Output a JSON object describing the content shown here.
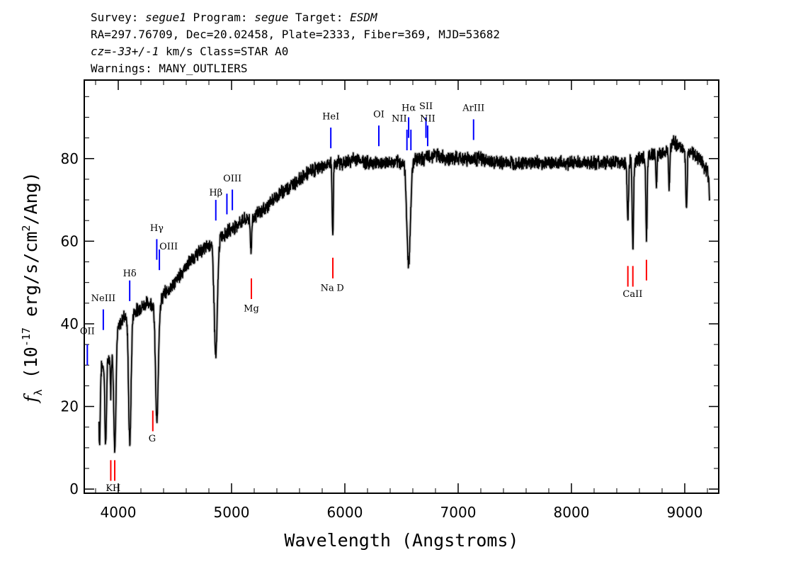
{
  "header": {
    "survey_label": "Survey: ",
    "survey": "segue1",
    "program_label": " Program: ",
    "program": "segue",
    "target_label": " Target: ",
    "target": "ESDM",
    "line2": "RA=297.76709, Dec=20.02458, Plate=2333, Fiber=369, MJD=53682",
    "cz_label": "cz",
    "cz_value": "=-33+/-1",
    "cz_rest": " km/s Class=STAR A0",
    "warnings": "Warnings: MANY_OUTLIERS"
  },
  "colors": {
    "emission": "#0000ff",
    "absorption": "#ff0000",
    "spectrum": "#000000",
    "error": "#c8c8c8"
  },
  "chart_data": {
    "type": "line",
    "xlabel": "Wavelength (Angstroms)",
    "ylabel_parts": {
      "f": "f",
      "lambda": "λ",
      "unit_a": " (10",
      "exp": "-17",
      "unit_b": " erg/s/cm",
      "exp2": "2",
      "unit_c": "/Ang)"
    },
    "xlim": [
      3700,
      9300
    ],
    "ylim": [
      -1,
      99
    ],
    "x_ticks": [
      4000,
      5000,
      6000,
      7000,
      8000,
      9000
    ],
    "x_tick_labels": [
      "4000",
      "5000",
      "6000",
      "7000",
      "8000",
      "9000"
    ],
    "y_ticks": [
      0,
      20,
      40,
      60,
      80
    ],
    "y_tick_labels": [
      "0",
      "20",
      "40",
      "60",
      "80"
    ],
    "continuum": [
      [
        3830,
        29
      ],
      [
        3870,
        30
      ],
      [
        3905,
        31
      ],
      [
        3950,
        33
      ],
      [
        3990,
        38
      ],
      [
        4050,
        42
      ],
      [
        4100,
        42
      ],
      [
        4150,
        43
      ],
      [
        4200,
        44
      ],
      [
        4250,
        45
      ],
      [
        4300,
        45
      ],
      [
        4350,
        44
      ],
      [
        4400,
        47
      ],
      [
        4500,
        50
      ],
      [
        4600,
        54
      ],
      [
        4700,
        57
      ],
      [
        4800,
        59
      ],
      [
        4900,
        61
      ],
      [
        5000,
        63
      ],
      [
        5100,
        65
      ],
      [
        5200,
        66
      ],
      [
        5300,
        68
      ],
      [
        5400,
        71
      ],
      [
        5500,
        73
      ],
      [
        5600,
        75
      ],
      [
        5700,
        77
      ],
      [
        5800,
        78
      ],
      [
        5900,
        79
      ],
      [
        6000,
        79
      ],
      [
        6100,
        80
      ],
      [
        6200,
        79
      ],
      [
        6300,
        79
      ],
      [
        6400,
        79
      ],
      [
        6500,
        79
      ],
      [
        6600,
        80
      ],
      [
        6700,
        80
      ],
      [
        6800,
        81
      ],
      [
        6900,
        80
      ],
      [
        7000,
        80
      ],
      [
        7100,
        80
      ],
      [
        7200,
        80
      ],
      [
        7300,
        79
      ],
      [
        7400,
        79
      ],
      [
        7500,
        79
      ],
      [
        7600,
        79
      ],
      [
        7700,
        79
      ],
      [
        7800,
        79
      ],
      [
        7900,
        79
      ],
      [
        8000,
        79
      ],
      [
        8100,
        79
      ],
      [
        8200,
        79
      ],
      [
        8300,
        79
      ],
      [
        8400,
        79
      ],
      [
        8500,
        79
      ],
      [
        8600,
        80
      ],
      [
        8700,
        81
      ],
      [
        8800,
        81
      ],
      [
        8900,
        84
      ],
      [
        9000,
        82
      ],
      [
        9100,
        81
      ],
      [
        9150,
        79
      ],
      [
        9200,
        77
      ],
      [
        9220,
        72
      ]
    ],
    "absorption_features": [
      {
        "center": 3835,
        "depth": 18,
        "width": 6
      },
      {
        "center": 3889,
        "depth": 20,
        "width": 7
      },
      {
        "center": 3934,
        "depth": 9,
        "width": 4
      },
      {
        "center": 3970,
        "depth": 26,
        "width": 9
      },
      {
        "center": 4102,
        "depth": 31,
        "width": 11
      },
      {
        "center": 4341,
        "depth": 28,
        "width": 12
      },
      {
        "center": 4861,
        "depth": 28,
        "width": 14
      },
      {
        "center": 5172,
        "depth": 8,
        "width": 6
      },
      {
        "center": 5893,
        "depth": 18,
        "width": 5
      },
      {
        "center": 6563,
        "depth": 25,
        "width": 16
      },
      {
        "center": 8498,
        "depth": 14,
        "width": 6
      },
      {
        "center": 8542,
        "depth": 21,
        "width": 6
      },
      {
        "center": 8662,
        "depth": 20,
        "width": 6
      },
      {
        "center": 8750,
        "depth": 8,
        "width": 5
      },
      {
        "center": 8863,
        "depth": 10,
        "width": 5
      },
      {
        "center": 9015,
        "depth": 14,
        "width": 6
      },
      {
        "center": 9229,
        "depth": 7,
        "width": 6
      }
    ],
    "emission_lines": [
      {
        "name": "OII",
        "wave": 3727,
        "y_bottom": 30,
        "y_top": 35,
        "label_y": 37.5,
        "label_anchor": "middle"
      },
      {
        "name": "NeIII",
        "wave": 3868,
        "y_bottom": 38.5,
        "y_top": 43.5,
        "label_y": 45.5,
        "label_anchor": "middle"
      },
      {
        "name": "Hδ",
        "wave": 4101,
        "y_bottom": 45.5,
        "y_top": 50.5,
        "label_y": 51.5,
        "label_anchor": "middle"
      },
      {
        "name": "Hγ",
        "wave": 4340,
        "y_bottom": 55.5,
        "y_top": 60.5,
        "label_y": 62.5,
        "label_anchor": "middle"
      },
      {
        "name": "OIII",
        "wave": 4363,
        "y_bottom": 53,
        "y_top": 58,
        "label_y": 58,
        "label_anchor": "start"
      },
      {
        "name": "Hβ",
        "wave": 4861,
        "y_bottom": 65,
        "y_top": 70,
        "label_y": 71,
        "label_anchor": "middle"
      },
      {
        "name": "",
        "wave": 4959,
        "y_bottom": 66.5,
        "y_top": 71.5
      },
      {
        "name": "OIII",
        "wave": 5007,
        "y_bottom": 67.5,
        "y_top": 72.5,
        "label_y": 74.5,
        "label_anchor": "middle"
      },
      {
        "name": "HeI",
        "wave": 5876,
        "y_bottom": 82.5,
        "y_top": 87.5,
        "label_y": 89.5,
        "label_anchor": "middle"
      },
      {
        "name": "OI",
        "wave": 6300,
        "y_bottom": 83,
        "y_top": 88,
        "label_y": 90,
        "label_anchor": "middle"
      },
      {
        "name": "NII",
        "wave": 6548,
        "y_bottom": 82,
        "y_top": 87,
        "label_y": 89,
        "label_anchor": "end"
      },
      {
        "name": "Hα",
        "wave": 6563,
        "y_bottom": 85,
        "y_top": 90,
        "label_y": 91.5,
        "label_anchor": "middle"
      },
      {
        "name": "",
        "wave": 6583,
        "y_bottom": 82,
        "y_top": 87
      },
      {
        "name": "SII",
        "wave": 6716,
        "y_bottom": 85,
        "y_top": 90,
        "label_y": 92,
        "label_anchor": "middle"
      },
      {
        "name": "NII",
        "wave": 6731,
        "y_bottom": 83,
        "y_top": 88,
        "label_y": 89,
        "label_anchor": "middle"
      },
      {
        "name": "ArIII",
        "wave": 7136,
        "y_bottom": 84.5,
        "y_top": 89.5,
        "label_y": 91.5,
        "label_anchor": "middle"
      }
    ],
    "absorption_lines": [
      {
        "wave": 3934,
        "y_bottom": 2,
        "y_top": 7
      },
      {
        "wave": 3969,
        "y_bottom": 2,
        "y_top": 7
      },
      {
        "wave": 4305,
        "y_bottom": 14,
        "y_top": 19
      },
      {
        "wave": 5175,
        "y_bottom": 46,
        "y_top": 51
      },
      {
        "wave": 5894,
        "y_bottom": 51,
        "y_top": 56
      },
      {
        "wave": 8498,
        "y_bottom": 49,
        "y_top": 54
      },
      {
        "wave": 8542,
        "y_bottom": 49,
        "y_top": 54
      },
      {
        "wave": 8662,
        "y_bottom": 50.5,
        "y_top": 55.5
      }
    ],
    "absorption_labels": [
      {
        "name": "K",
        "wave": 3920,
        "y": -0.5
      },
      {
        "name": "H",
        "wave": 3985,
        "y": -0.5
      },
      {
        "name": "G",
        "wave": 4300,
        "y": 11.5
      },
      {
        "name": "Mg",
        "wave": 5175,
        "y": 43
      },
      {
        "name": "Na",
        "wave": 5845,
        "y": 48
      },
      {
        "name": "D",
        "wave": 5960,
        "y": 48
      },
      {
        "name": "CaII",
        "wave": 8540,
        "y": 46.5
      }
    ]
  }
}
